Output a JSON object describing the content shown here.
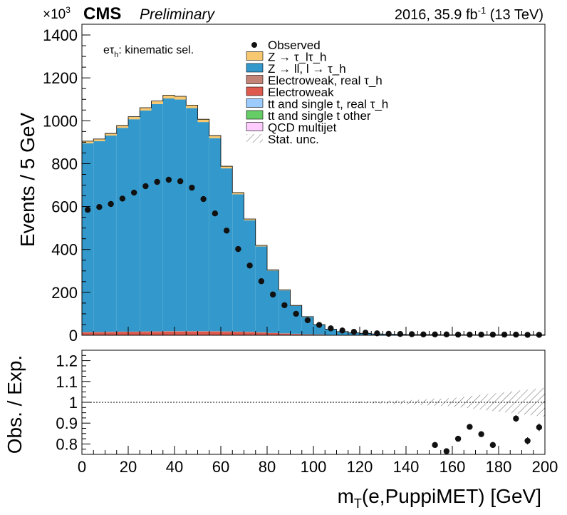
{
  "header": {
    "cms": "CMS",
    "preliminary": "Preliminary",
    "lumi_prefix": "2016, 35.9 fb",
    "lumi_sup": "-1",
    "lumi_suffix": " (13 TeV)",
    "scale_base": "×10",
    "scale_exp": "3"
  },
  "chart_data": [
    {
      "type": "bar",
      "stacked": true,
      "xlabel": "m_T(e,PuppiMET) [GeV]",
      "ylabel": "Events / 5 GeV",
      "ylim": [
        0,
        1450
      ],
      "xlim": [
        0,
        200
      ],
      "scale_factor": 1000,
      "annotation": "eτ_h: kinematic sel.",
      "bin_edges": [
        0,
        5,
        10,
        15,
        20,
        25,
        30,
        35,
        40,
        45,
        50,
        55,
        60,
        65,
        70,
        75,
        80,
        85,
        90,
        95,
        100,
        105,
        110,
        115,
        120,
        125,
        130,
        135,
        140,
        145,
        150,
        155,
        160,
        165,
        170,
        175,
        180,
        185,
        190,
        195,
        200
      ],
      "series": [
        {
          "name": "Electroweak",
          "color": "#de5a4e",
          "values": [
            13,
            13,
            14,
            15,
            15,
            16,
            16,
            17,
            17,
            17,
            17,
            17,
            16,
            15,
            14,
            12,
            10,
            8,
            6,
            4,
            3,
            2,
            1,
            1,
            1,
            0,
            0,
            0,
            0,
            0,
            0,
            0,
            0,
            0,
            0,
            0,
            0,
            0,
            0,
            0
          ]
        },
        {
          "name": "Electroweak, real τ_h",
          "color": "#c48377",
          "values": [
            2,
            2,
            2,
            2,
            2,
            2,
            2,
            2,
            2,
            2,
            2,
            2,
            2,
            2,
            2,
            2,
            1,
            1,
            1,
            1,
            1,
            0,
            0,
            0,
            0,
            0,
            0,
            0,
            0,
            0,
            0,
            0,
            0,
            0,
            0,
            0,
            0,
            0,
            0,
            0
          ]
        },
        {
          "name": "Z → ll, l → τ_h",
          "color": "#3399cc",
          "values": [
            880,
            890,
            915,
            950,
            990,
            1030,
            1060,
            1085,
            1080,
            1040,
            975,
            900,
            760,
            640,
            520,
            400,
            290,
            200,
            130,
            80,
            45,
            25,
            15,
            10,
            8,
            6,
            5,
            4,
            3,
            3,
            3,
            2,
            2,
            2,
            2,
            2,
            2,
            2,
            2,
            2
          ]
        },
        {
          "name": "Z → τ_lτ_h",
          "color": "#f8c870",
          "values": [
            10,
            10,
            10,
            11,
            12,
            13,
            14,
            15,
            15,
            14,
            13,
            12,
            10,
            8,
            6,
            5,
            4,
            3,
            2,
            2,
            1,
            1,
            1,
            0,
            0,
            0,
            0,
            0,
            0,
            0,
            0,
            0,
            0,
            0,
            0,
            0,
            0,
            0,
            0,
            0
          ]
        }
      ],
      "observed": [
        585,
        598,
        612,
        637,
        665,
        695,
        715,
        725,
        718,
        688,
        635,
        568,
        488,
        402,
        325,
        252,
        190,
        140,
        100,
        70,
        48,
        32,
        22,
        16,
        12,
        9,
        7,
        6,
        5,
        4,
        4,
        4,
        3,
        3,
        3,
        3,
        3,
        3,
        2,
        2
      ],
      "legend": [
        {
          "label": "Observed",
          "kind": "marker"
        },
        {
          "label": "Z → τ_lτ_h",
          "color": "#f8c870"
        },
        {
          "label": "Z → ll, l → τ_h",
          "color": "#3399cc"
        },
        {
          "label": "Electroweak, real τ_h",
          "color": "#c48377"
        },
        {
          "label": "Electroweak",
          "color": "#de5a4e"
        },
        {
          "label": "tt and single t, real τ_h",
          "color": "#9bcbff"
        },
        {
          "label": "tt and single t other",
          "color": "#66cc66"
        },
        {
          "label": "QCD multijet",
          "color": "#ffccff"
        },
        {
          "label": "Stat. unc.",
          "kind": "hatch"
        }
      ],
      "yticks": [
        0,
        200,
        400,
        600,
        800,
        1000,
        1200,
        1400
      ]
    },
    {
      "type": "scatter",
      "xlabel": "m_T(e,PuppiMET) [GeV]",
      "ylabel": "Obs. / Exp.",
      "ylim": [
        0.75,
        1.25
      ],
      "xlim": [
        0,
        200
      ],
      "yticks": [
        0.8,
        0.9,
        1.0,
        1.1,
        1.2
      ],
      "ytick_labels": [
        "0.8",
        "0.9",
        "1",
        "1.1",
        "1.2"
      ],
      "xticks": [
        0,
        20,
        40,
        60,
        80,
        100,
        120,
        140,
        160,
        180,
        200
      ],
      "ratio_points": [
        {
          "x": 152.5,
          "y": 0.795,
          "err": 0.008
        },
        {
          "x": 157.5,
          "y": 0.765,
          "err": 0.008
        },
        {
          "x": 162.5,
          "y": 0.825,
          "err": 0.012
        },
        {
          "x": 167.5,
          "y": 0.882,
          "err": 0.012
        },
        {
          "x": 172.5,
          "y": 0.847,
          "err": 0.013
        },
        {
          "x": 177.5,
          "y": 0.795,
          "err": 0.014
        },
        {
          "x": 187.5,
          "y": 0.922,
          "err": 0.016
        },
        {
          "x": 192.5,
          "y": 0.815,
          "err": 0.017
        },
        {
          "x": 197.5,
          "y": 0.88,
          "err": 0.018
        }
      ],
      "unc_band": [
        {
          "x": 100,
          "half": 0.0
        },
        {
          "x": 120,
          "half": 0.004
        },
        {
          "x": 140,
          "half": 0.01
        },
        {
          "x": 160,
          "half": 0.02
        },
        {
          "x": 180,
          "half": 0.045
        },
        {
          "x": 200,
          "half": 0.07
        }
      ]
    }
  ]
}
